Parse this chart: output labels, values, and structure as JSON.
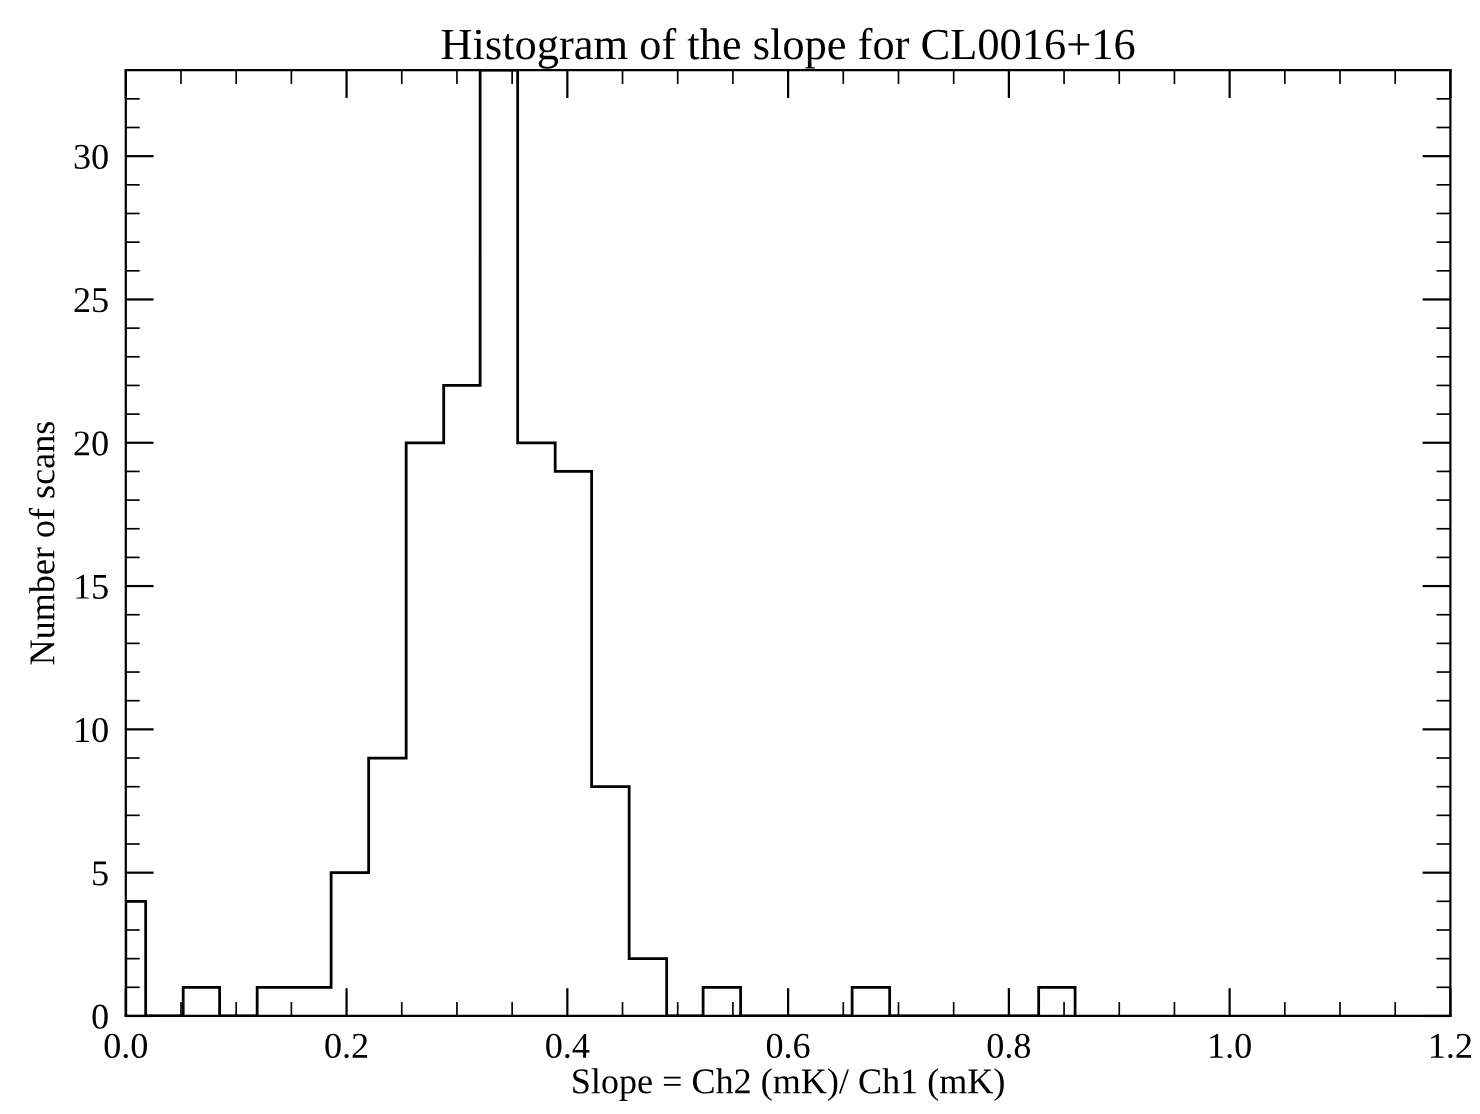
{
  "chart_data": {
    "type": "histogram",
    "title": "Histogram of the slope for CL0016+16",
    "xlabel": "Slope = Ch2 (mK)/ Ch1 (mK)",
    "ylabel": "Number of scans",
    "bins": [
      0,
      0.018,
      0.052,
      0.085,
      0.119,
      0.153,
      0.186,
      0.22,
      0.254,
      0.288,
      0.321,
      0.355,
      0.389,
      0.422,
      0.456,
      0.49,
      0.523,
      0.557,
      0.591,
      0.625,
      0.658,
      0.692,
      0.726,
      0.759,
      0.793,
      0.827,
      0.86
    ],
    "values": [
      4,
      0,
      1,
      0,
      1,
      1,
      5,
      9,
      20,
      22,
      33,
      20,
      19,
      8,
      2,
      0,
      1,
      0,
      0,
      0,
      1,
      0,
      0,
      0,
      0,
      1
    ],
    "color": "#000000",
    "xlim": [
      0,
      1.2
    ],
    "xticks": [
      {
        "value": 0,
        "label": "0.0"
      },
      0.2,
      0.4,
      0.6,
      0.8,
      {
        "value": 1,
        "label": "1.0"
      },
      1.2
    ],
    "ylim": [
      0,
      33
    ],
    "yticks": [
      0,
      5,
      10,
      15,
      20,
      25,
      30
    ],
    "grid": false,
    "legend": false
  }
}
